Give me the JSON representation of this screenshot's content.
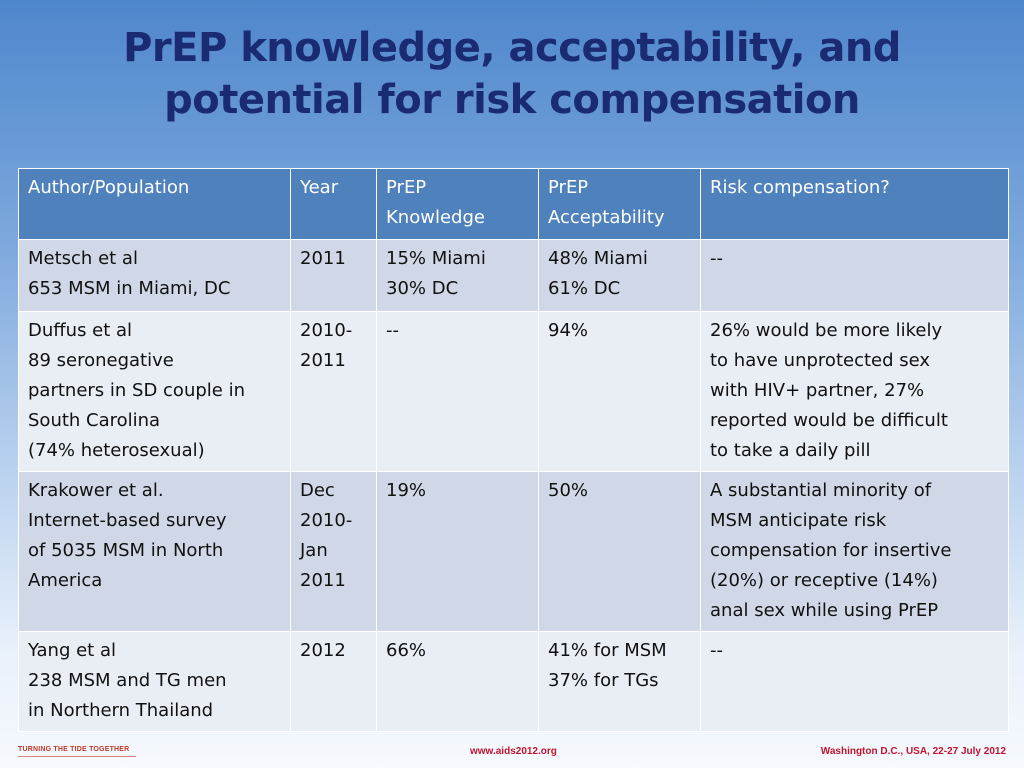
{
  "slide": {
    "title_lines": [
      "PrEP knowledge, acceptability, and",
      "potential for risk compensation"
    ]
  },
  "table": {
    "headers": [
      [
        "Author/Population"
      ],
      [
        "Year"
      ],
      [
        "PrEP",
        "Knowledge"
      ],
      [
        "PrEP",
        "Acceptability"
      ],
      [
        "Risk compensation?"
      ]
    ],
    "rows": [
      [
        [
          "Metsch et al",
          "653 MSM in Miami, DC"
        ],
        [
          "2011"
        ],
        [
          "15% Miami",
          "30% DC"
        ],
        [
          "48% Miami",
          "61% DC"
        ],
        [
          "--"
        ]
      ],
      [
        [
          "Duffus et al",
          "89 seronegative",
          "partners in SD couple in",
          "South Carolina",
          "(74% heterosexual)"
        ],
        [
          "2010-",
          "2011"
        ],
        [
          "--"
        ],
        [
          "94%"
        ],
        [
          "26% would be more likely",
          "to have unprotected sex",
          "with HIV+ partner, 27%",
          "reported would be difficult",
          "to take a daily pill"
        ]
      ],
      [
        [
          "Krakower et al.",
          "Internet-based survey",
          "of 5035 MSM in North",
          "America"
        ],
        [
          "Dec",
          "2010-",
          "Jan",
          "2011"
        ],
        [
          "19%"
        ],
        [
          "50%"
        ],
        [
          "A substantial minority of",
          "MSM anticipate risk",
          "compensation for insertive",
          "(20%) or receptive (14%)",
          "anal sex while using PrEP"
        ]
      ],
      [
        [
          "Yang et al",
          "238 MSM and TG men",
          "in Northern Thailand"
        ],
        [
          "2012"
        ],
        [
          "66%"
        ],
        [
          "41% for MSM",
          "37% for TGs"
        ],
        [
          "--"
        ]
      ]
    ]
  },
  "footer": {
    "slogan": "TURNING THE TIDE TOGETHER",
    "url": "www.aids2012.org",
    "venue": "Washington D.C., USA, 22-27 July 2012"
  },
  "colors": {
    "title": "#1a2a73",
    "header_fill": "#4f81bd",
    "row_odd": "#d0d8e8",
    "row_even": "#e9edf4",
    "footer_text": "#c0142d"
  }
}
